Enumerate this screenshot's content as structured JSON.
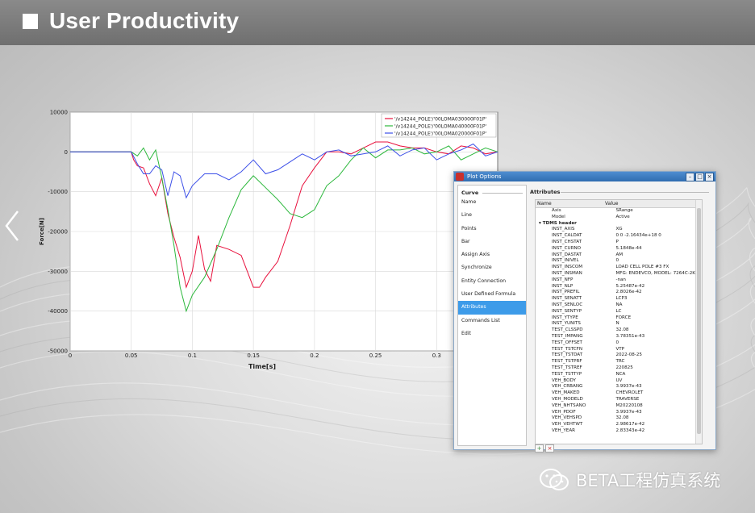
{
  "header": {
    "title": "User Productivity"
  },
  "plot": {
    "chart_data": {
      "type": "line",
      "xlabel": "Time[s]",
      "ylabel": "Force[N]",
      "xlim": [
        0,
        0.35
      ],
      "ylim": [
        -50000,
        10000
      ],
      "xticks": [
        "0",
        "0.05",
        "0.1",
        "0.15",
        "0.2",
        "0.25",
        "0.3"
      ],
      "yticks": [
        "10000",
        "0",
        "-10000",
        "-20000",
        "-30000",
        "-40000",
        "-50000"
      ],
      "grid": true,
      "legend_position": "top-right",
      "series": [
        {
          "name": "'/v14244_POLE'/'00LOMA030000F01P'",
          "color": "#e8103c",
          "x": [
            0,
            0.05,
            0.052,
            0.055,
            0.06,
            0.065,
            0.07,
            0.075,
            0.08,
            0.085,
            0.09,
            0.095,
            0.1,
            0.105,
            0.11,
            0.115,
            0.12,
            0.13,
            0.14,
            0.15,
            0.155,
            0.16,
            0.17,
            0.18,
            0.19,
            0.2,
            0.21,
            0.22,
            0.23,
            0.24,
            0.25,
            0.26,
            0.27,
            0.28,
            0.29,
            0.3,
            0.31,
            0.32,
            0.33,
            0.34,
            0.35
          ],
          "y": [
            0,
            0,
            -2000,
            -5000,
            -3000,
            -8000,
            -12000,
            -5000,
            -15000,
            -22000,
            -28000,
            -33000,
            -30000,
            -22000,
            -28000,
            -32000,
            -24000,
            -26000,
            -25000,
            -34000,
            -35000,
            -30000,
            -27000,
            -19000,
            -10000,
            -3000,
            0,
            -1000,
            1000,
            1500,
            2000,
            1000,
            2500,
            1000,
            0,
            1500,
            0,
            1000,
            -500,
            500,
            0
          ]
        },
        {
          "name": "'/v14244_POLE'/'00LOMA040000F01P'",
          "color": "#2db83d",
          "x": [
            0,
            0.05,
            0.055,
            0.06,
            0.065,
            0.07,
            0.075,
            0.08,
            0.085,
            0.09,
            0.095,
            0.1,
            0.11,
            0.12,
            0.13,
            0.14,
            0.15,
            0.16,
            0.17,
            0.18,
            0.19,
            0.2,
            0.21,
            0.22,
            0.23,
            0.24,
            0.25,
            0.26,
            0.27,
            0.28,
            0.29,
            0.3,
            0.31,
            0.32,
            0.33,
            0.34,
            0.35
          ],
          "y": [
            0,
            0,
            -1000,
            1000,
            -3000,
            2000,
            -6000,
            -15000,
            -25000,
            -33000,
            -40000,
            -37000,
            -30000,
            -24000,
            -17000,
            -11000,
            -5000,
            -9000,
            -13000,
            -14000,
            -16000,
            -15000,
            -10000,
            -5000,
            -2000,
            0,
            0,
            1000,
            0,
            -500,
            500,
            0,
            500,
            -500,
            0,
            500,
            0
          ]
        },
        {
          "name": "'/v14244_POLE'/'00LOMA020000F01P'",
          "color": "#3c4fe8",
          "x": [
            0,
            0.05,
            0.055,
            0.06,
            0.065,
            0.07,
            0.075,
            0.08,
            0.085,
            0.09,
            0.095,
            0.1,
            0.11,
            0.12,
            0.13,
            0.14,
            0.15,
            0.16,
            0.17,
            0.18,
            0.19,
            0.2,
            0.21,
            0.22,
            0.23,
            0.24,
            0.25,
            0.26,
            0.27,
            0.28,
            0.29,
            0.3,
            0.31,
            0.32,
            0.33,
            0.34,
            0.35
          ],
          "y": [
            0,
            0,
            -3000,
            -4000,
            -5000,
            -4000,
            -6000,
            -10000,
            -5000,
            -7000,
            -10000,
            -8000,
            -6000,
            -7000,
            -6000,
            -5000,
            -3000,
            -4000,
            -4000,
            -3000,
            -2000,
            -1000,
            0,
            -500,
            500,
            0,
            -500,
            0,
            0,
            500,
            0,
            -500,
            0,
            0,
            500,
            0,
            0
          ]
        }
      ]
    }
  },
  "dialog": {
    "title": "Plot Options",
    "left_header": "Curve",
    "left_items": [
      "Name",
      "Line",
      "Points",
      "Bar",
      "Assign Axis",
      "Synchronize",
      "Entity Connection",
      "User Defined Formula",
      "Attributes",
      "Commands List",
      "Edit"
    ],
    "right_header": "Attributes",
    "columns": [
      "Name",
      "Value"
    ],
    "rows": [
      {
        "n": "Axis",
        "v": "SRange",
        "indent": 2
      },
      {
        "n": "Model",
        "v": "Active",
        "indent": 2
      },
      {
        "n": "TDMS header",
        "v": "",
        "indent": 0,
        "group": true
      },
      {
        "n": "INST_AXIS",
        "v": "XG",
        "indent": 2
      },
      {
        "n": "INST_CALDAT",
        "v": "0 0 -2.16434e+18 0",
        "indent": 2
      },
      {
        "n": "INST_CHSTAT",
        "v": "P",
        "indent": 2
      },
      {
        "n": "INST_CURNO",
        "v": "5.1848e-44",
        "indent": 2
      },
      {
        "n": "INST_DASTAT",
        "v": "AM",
        "indent": 2
      },
      {
        "n": "INST_INIVEL",
        "v": "0",
        "indent": 2
      },
      {
        "n": "INST_INSCOM",
        "v": "LOAD CELL POLE #3 FX",
        "indent": 2
      },
      {
        "n": "INST_INSMAN",
        "v": "MFG: ENDEVCO, MODEL: 7264C-2K...",
        "indent": 2
      },
      {
        "n": "INST_NFP",
        "v": "-nan",
        "indent": 2
      },
      {
        "n": "INST_NLP",
        "v": "5.25487e-42",
        "indent": 2
      },
      {
        "n": "INST_PREFIL",
        "v": "2.8026e-42",
        "indent": 2
      },
      {
        "n": "INST_SENATT",
        "v": "LCP3",
        "indent": 2
      },
      {
        "n": "INST_SENLOC",
        "v": "NA",
        "indent": 2
      },
      {
        "n": "INST_SENTYP",
        "v": "LC",
        "indent": 2
      },
      {
        "n": "INST_YTYPE",
        "v": "FORCE",
        "indent": 2
      },
      {
        "n": "INST_YUNITS",
        "v": "N",
        "indent": 2
      },
      {
        "n": "TEST_CLSSPD",
        "v": "32.08",
        "indent": 2
      },
      {
        "n": "TEST_IMPANG",
        "v": "3.78351e-43",
        "indent": 2
      },
      {
        "n": "TEST_OFFSET",
        "v": "0",
        "indent": 2
      },
      {
        "n": "TEST_TSTCFN",
        "v": "VTP",
        "indent": 2
      },
      {
        "n": "TEST_TSTDAT",
        "v": "2022-08-25",
        "indent": 2
      },
      {
        "n": "TEST_TSTPRF",
        "v": "TRC",
        "indent": 2
      },
      {
        "n": "TEST_TSTREF",
        "v": "220825",
        "indent": 2
      },
      {
        "n": "TEST_TSTTYP",
        "v": "NCA",
        "indent": 2
      },
      {
        "n": "VEH_BODY",
        "v": "UV",
        "indent": 2
      },
      {
        "n": "VEH_CRBANG",
        "v": "3.9937e-43",
        "indent": 2
      },
      {
        "n": "VEH_MAKED",
        "v": "CHEVROLET",
        "indent": 2
      },
      {
        "n": "VEH_MODELD",
        "v": "TRAVERSE",
        "indent": 2
      },
      {
        "n": "VEH_NHTSANO",
        "v": "M20220108",
        "indent": 2
      },
      {
        "n": "VEH_PDOF",
        "v": "3.9937e-43",
        "indent": 2
      },
      {
        "n": "VEH_VEHSPD",
        "v": "32.08",
        "indent": 2
      },
      {
        "n": "VEH_VEHTWT",
        "v": "2.98617e-42",
        "indent": 2
      },
      {
        "n": "VEH_YEAR",
        "v": "2.83343e-42",
        "indent": 2
      }
    ],
    "footer_buttons": [
      "+",
      "×"
    ]
  },
  "watermark": {
    "text": "BETA工程仿真系统"
  }
}
